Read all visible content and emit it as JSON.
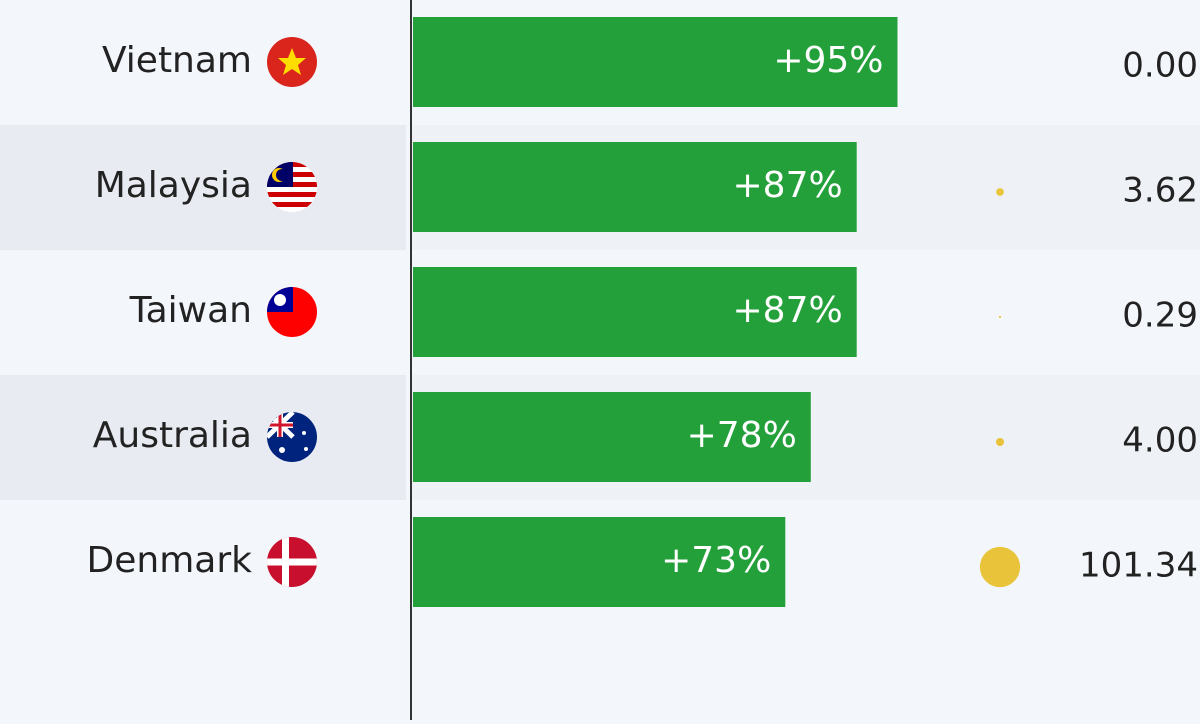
{
  "chart_data": [
    {
      "type": "bar",
      "categories": [
        "Vietnam",
        "Malaysia",
        "Taiwan",
        "Australia",
        "Denmark"
      ],
      "values": [
        95,
        87,
        87,
        78,
        73
      ],
      "value_labels": [
        "+95%",
        "+87%",
        "+87%",
        "+78%",
        "+73%"
      ],
      "color": "#23a03a"
    },
    {
      "type": "bubble",
      "values": [
        0.0,
        3.62,
        0.29,
        4.0,
        101.34
      ],
      "value_labels": [
        "0.00",
        "3.62",
        "0.29",
        "4.00",
        "101.34"
      ],
      "color": "#e9c43a"
    }
  ]
}
